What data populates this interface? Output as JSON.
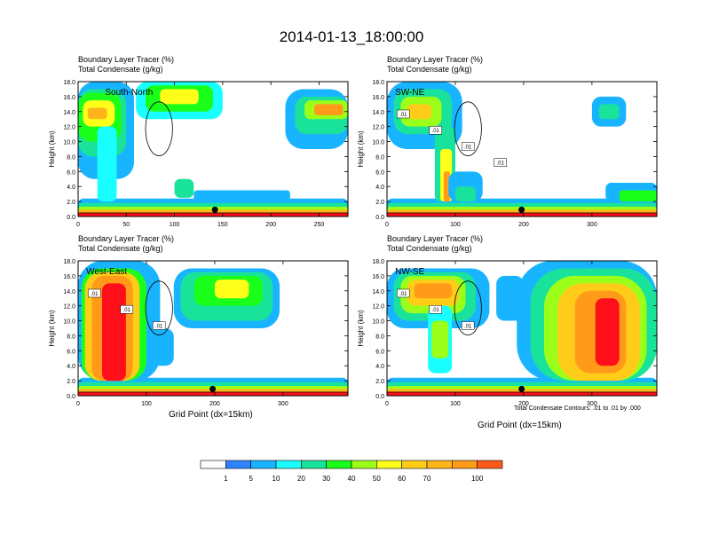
{
  "title": "2014-01-13_18:00:00",
  "colors": {
    "levels": [
      "#ffffff",
      "#2e84ff",
      "#19b4ff",
      "#19ffff",
      "#19e39b",
      "#19ff19",
      "#9bff19",
      "#ffff19",
      "#ffcd19",
      "#ffb419",
      "#ff9b19",
      "#ff5a19",
      "#ff0f19"
    ]
  },
  "colorbar": {
    "labels": [
      "1",
      "5",
      "10",
      "20",
      "30",
      "40",
      "50",
      "60",
      "70",
      "100"
    ]
  },
  "contour_note": "Total Condensate Contours: .01 to .01 by .000",
  "chart_data": [
    {
      "type": "heatmap",
      "section": "South-North",
      "label_line1": "Boundary Layer Tracer    (%)",
      "label_line2": "Total Condensate    (g/kg)",
      "ylabel": "Height (km)",
      "xlabel": "",
      "xlim": [
        0,
        280
      ],
      "ylim": [
        0,
        18
      ],
      "xticks": [
        "0",
        "50",
        "100",
        "150",
        "200",
        "250"
      ],
      "yticks": [
        "0.0",
        "2.0",
        "4.0",
        "6.0",
        "8.0",
        "10.0",
        "12.0",
        "14.0",
        "16.0",
        "18.0"
      ],
      "marker_x": 142,
      "contour_labels": []
    },
    {
      "type": "heatmap",
      "section": "SW-NE",
      "label_line1": "Boundary Layer Tracer    (%)",
      "label_line2": "Total Condensate    (g/kg)",
      "ylabel": "Height (km)",
      "xlabel": "",
      "xlim": [
        0,
        395
      ],
      "ylim": [
        0,
        18
      ],
      "xticks": [
        "0",
        "100",
        "200",
        "300"
      ],
      "yticks": [
        "0.0",
        "2.0",
        "4.0",
        "6.0",
        "8.0",
        "10.0",
        "12.0",
        "14.0",
        "16.0",
        "18.0"
      ],
      "marker_x": 197,
      "contour_labels": [
        ".01",
        ".01",
        ".01",
        ".01"
      ]
    },
    {
      "type": "heatmap",
      "section": "West-East",
      "label_line1": "Boundary Layer Tracer    (%)",
      "label_line2": "Total Condensate    (g/kg)",
      "ylabel": "Height (km)",
      "xlabel": "Grid Point (dx=15km)",
      "xlim": [
        0,
        395
      ],
      "ylim": [
        0,
        18
      ],
      "xticks": [
        "0",
        "100",
        "200",
        "300"
      ],
      "yticks": [
        "0.0",
        "2.0",
        "4.0",
        "6.0",
        "8.0",
        "10.0",
        "12.0",
        "14.0",
        "16.0",
        "18.0"
      ],
      "marker_x": 197,
      "contour_labels": [
        ".01",
        ".01",
        ".01"
      ]
    },
    {
      "type": "heatmap",
      "section": "NW-SE",
      "label_line1": "Boundary Layer Tracer    (%)",
      "label_line2": "Total Condensate    (g/kg)",
      "ylabel": "Height (km)",
      "xlabel": "Grid Point (dx=15km)",
      "xlim": [
        0,
        395
      ],
      "ylim": [
        0,
        18
      ],
      "xticks": [
        "0",
        "100",
        "200",
        "300"
      ],
      "yticks": [
        "0.0",
        "2.0",
        "4.0",
        "6.0",
        "8.0",
        "10.0",
        "12.0",
        "14.0",
        "16.0",
        "18.0"
      ],
      "marker_x": 197,
      "contour_labels": [
        ".01",
        ".01",
        ".01"
      ]
    }
  ]
}
